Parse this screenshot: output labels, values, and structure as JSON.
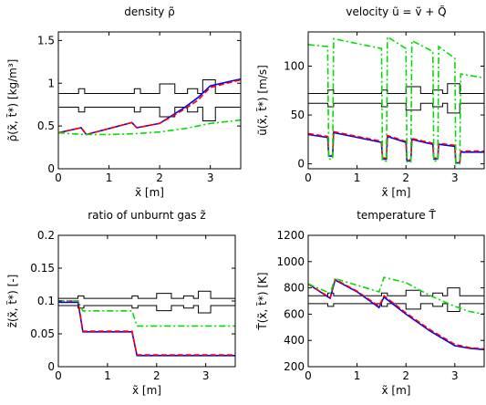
{
  "chart_data": [
    {
      "type": "line",
      "title": "density ρ̃",
      "xlabel": "x̃ [m]",
      "ylabel": "ρ̃(x̃, t̃*) [kg/m³]",
      "xlim": [
        0,
        3.6
      ],
      "ylim": [
        0,
        1.6
      ],
      "xticks": [
        0,
        1,
        2,
        3
      ],
      "yticks": [
        0,
        0.5,
        1,
        1.5
      ],
      "grid": false,
      "series": [
        {
          "color": "#0000ff",
          "style": "solid",
          "x": [
            0,
            0.45,
            0.55,
            1.45,
            1.55,
            2.0,
            2.5,
            2.75,
            3.0,
            3.6
          ],
          "y": [
            0.42,
            0.48,
            0.4,
            0.54,
            0.48,
            0.53,
            0.72,
            0.83,
            0.97,
            1.05
          ]
        },
        {
          "color": "#ff0000",
          "style": "dashed",
          "x": [
            0,
            0.45,
            0.55,
            1.45,
            1.55,
            2.0,
            2.5,
            2.75,
            3.0,
            3.6
          ],
          "y": [
            0.42,
            0.48,
            0.4,
            0.54,
            0.48,
            0.53,
            0.7,
            0.8,
            0.95,
            1.04
          ]
        },
        {
          "color": "#00dd00",
          "style": "dashdot",
          "x": [
            0,
            0.5,
            1.0,
            1.5,
            2.0,
            2.5,
            3.0,
            3.6
          ],
          "y": [
            0.42,
            0.4,
            0.4,
            0.41,
            0.43,
            0.47,
            0.53,
            0.57
          ]
        }
      ],
      "geometry_band": [
        0.72,
        0.88
      ]
    },
    {
      "type": "line",
      "title": "velocity ũ = ṽ + Q̃",
      "xlabel": "x̃ [m]",
      "ylabel": "ũ(x̃, t̃*) [m/s]",
      "xlim": [
        0,
        3.6
      ],
      "ylim": [
        -5,
        135
      ],
      "xticks": [
        0,
        1,
        2,
        3
      ],
      "yticks": [
        0,
        50,
        100
      ],
      "grid": false,
      "series": [
        {
          "color": "#0000ff",
          "style": "solid",
          "x": [
            0,
            0.4,
            0.42,
            0.5,
            0.52,
            1.5,
            1.52,
            1.6,
            1.62,
            2.0,
            2.02,
            2.1,
            2.12,
            2.55,
            2.57,
            2.65,
            2.67,
            3.0,
            3.02,
            3.1,
            3.12,
            3.6
          ],
          "y": [
            30,
            27,
            8,
            8,
            32,
            22,
            5,
            5,
            28,
            22,
            3,
            3,
            25,
            20,
            5,
            5,
            20,
            18,
            1,
            1,
            12,
            12
          ]
        },
        {
          "color": "#ff0000",
          "style": "dashed",
          "x": [
            0,
            0.4,
            0.42,
            0.5,
            0.52,
            1.5,
            1.52,
            1.6,
            1.62,
            2.0,
            2.02,
            2.1,
            2.12,
            2.55,
            2.57,
            2.65,
            2.67,
            3.0,
            3.02,
            3.1,
            3.12,
            3.6
          ],
          "y": [
            31,
            28,
            9,
            9,
            33,
            23,
            6,
            6,
            29,
            23,
            4,
            4,
            26,
            21,
            6,
            6,
            21,
            19,
            2,
            2,
            13,
            13
          ]
        },
        {
          "color": "#00dd00",
          "style": "dashdot",
          "x": [
            0,
            0.4,
            0.42,
            0.5,
            0.52,
            1.5,
            1.52,
            1.6,
            1.62,
            2.0,
            2.02,
            2.1,
            2.12,
            2.55,
            2.57,
            2.65,
            2.67,
            3.0,
            3.02,
            3.1,
            3.12,
            3.6
          ],
          "y": [
            122,
            120,
            5,
            5,
            128,
            118,
            3,
            3,
            130,
            118,
            2,
            2,
            126,
            115,
            3,
            3,
            120,
            108,
            0,
            0,
            92,
            88
          ]
        }
      ],
      "geometry_band": [
        62,
        72
      ]
    },
    {
      "type": "line",
      "title": "ratio of unburnt gas z̃",
      "xlabel": "x̃ [m]",
      "ylabel": "z̃(x̃, t̃*) [-]",
      "xlim": [
        0,
        3.6
      ],
      "ylim": [
        0,
        0.2
      ],
      "xticks": [
        0,
        1,
        2,
        3
      ],
      "yticks": [
        0,
        0.05,
        0.1,
        0.15,
        0.2
      ],
      "grid": false,
      "series": [
        {
          "color": "#0000ff",
          "style": "solid",
          "x": [
            0,
            0.4,
            0.5,
            1.5,
            1.6,
            3.6
          ],
          "y": [
            0.098,
            0.098,
            0.053,
            0.053,
            0.017,
            0.017
          ]
        },
        {
          "color": "#ff0000",
          "style": "dashed",
          "x": [
            0,
            0.4,
            0.5,
            1.5,
            1.6,
            3.6
          ],
          "y": [
            0.1,
            0.1,
            0.054,
            0.054,
            0.018,
            0.018
          ]
        },
        {
          "color": "#00dd00",
          "style": "dashdot",
          "x": [
            0,
            0.4,
            0.5,
            1.5,
            1.6,
            3.6
          ],
          "y": [
            0.1,
            0.1,
            0.085,
            0.085,
            0.062,
            0.062
          ]
        }
      ],
      "geometry_band": [
        0.093,
        0.104
      ]
    },
    {
      "type": "line",
      "title": "temperature T̃",
      "xlabel": "x̃ [m]",
      "ylabel": "T̃(x̃, t̃*) [K]",
      "xlim": [
        0,
        3.6
      ],
      "ylim": [
        200,
        1200
      ],
      "xticks": [
        0,
        1,
        2,
        3
      ],
      "yticks": [
        200,
        400,
        600,
        800,
        1000,
        1200
      ],
      "grid": false,
      "series": [
        {
          "color": "#0000ff",
          "style": "solid",
          "x": [
            0,
            0.45,
            0.55,
            1.0,
            1.45,
            1.55,
            2.0,
            2.5,
            3.0,
            3.3,
            3.6
          ],
          "y": [
            830,
            720,
            860,
            770,
            650,
            730,
            600,
            470,
            360,
            340,
            330
          ]
        },
        {
          "color": "#ff0000",
          "style": "dashed",
          "x": [
            0,
            0.45,
            0.55,
            1.0,
            1.45,
            1.55,
            2.0,
            2.5,
            3.0,
            3.3,
            3.6
          ],
          "y": [
            830,
            725,
            865,
            775,
            660,
            740,
            610,
            480,
            370,
            345,
            335
          ]
        },
        {
          "color": "#00dd00",
          "style": "dashdot",
          "x": [
            0,
            0.45,
            0.55,
            1.0,
            1.45,
            1.55,
            2.0,
            2.5,
            3.0,
            3.3,
            3.6
          ],
          "y": [
            830,
            760,
            870,
            820,
            770,
            880,
            840,
            740,
            660,
            620,
            600
          ]
        }
      ],
      "geometry_band": [
        680,
        740
      ]
    }
  ]
}
